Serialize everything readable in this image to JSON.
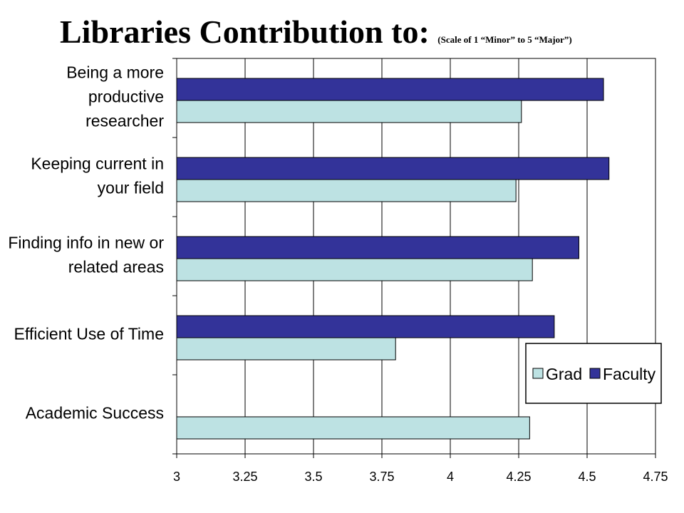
{
  "title": {
    "main": "Libraries Contribution to: ",
    "sub": "(Scale of 1 “Minor” to 5 “Major”)"
  },
  "colors": {
    "grad": "#bde2e3",
    "faculty": "#333399",
    "grid": "#000000"
  },
  "chart_data": {
    "type": "bar",
    "orientation": "horizontal",
    "categories": [
      [
        "Being a more",
        "productive",
        "researcher"
      ],
      [
        "Keeping current in",
        "your field"
      ],
      [
        "Finding info in new or",
        "related areas"
      ],
      [
        "Efficient Use of Time"
      ],
      [
        "Academic Success"
      ]
    ],
    "series": [
      {
        "name": "Faculty",
        "values": [
          4.56,
          4.58,
          4.47,
          4.38,
          null
        ]
      },
      {
        "name": "Grad",
        "values": [
          4.26,
          4.24,
          4.3,
          3.8,
          4.29
        ]
      }
    ],
    "xlim": [
      3,
      4.75
    ],
    "xticks": [
      "3",
      "3.25",
      "3.5",
      "3.75",
      "4",
      "4.25",
      "4.5",
      "4.75"
    ],
    "legend": {
      "position": "right",
      "order": [
        "Grad",
        "Faculty"
      ]
    },
    "grid": true
  }
}
